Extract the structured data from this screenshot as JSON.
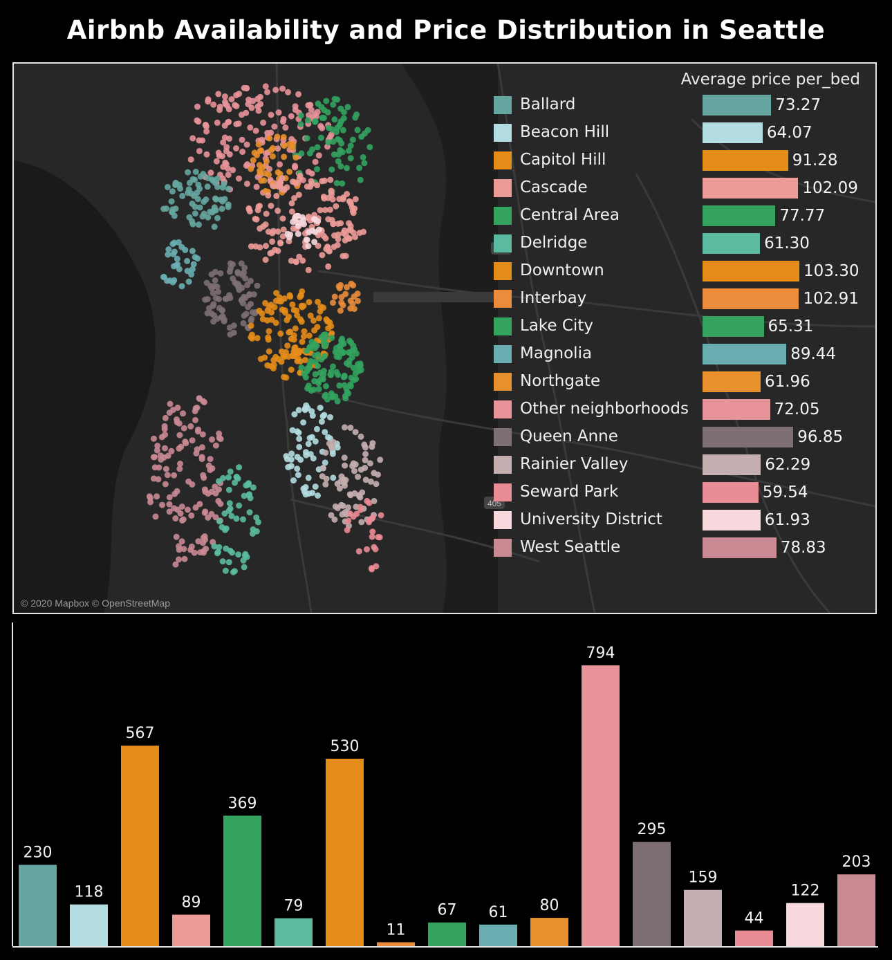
{
  "title": "Airbnb Availability and Price Distribution in Seattle",
  "map": {
    "attribution": "© 2020 Mapbox © OpenStreetMap",
    "road_labels": [
      "405",
      "405"
    ],
    "background_color": "#272727"
  },
  "legend_header": "Average price per_bed",
  "chart_data": [
    {
      "type": "bar",
      "orientation": "horizontal",
      "title": "Average price per_bed",
      "categories": [
        "Ballard",
        "Beacon Hill",
        "Capitol Hill",
        "Cascade",
        "Central Area",
        "Delridge",
        "Downtown",
        "Interbay",
        "Lake City",
        "Magnolia",
        "Northgate",
        "Other neighborhoods",
        "Queen Anne",
        "Rainier Valley",
        "Seward Park",
        "University District",
        "West Seattle"
      ],
      "values": [
        73.27,
        64.07,
        91.28,
        102.09,
        77.77,
        61.3,
        103.3,
        102.91,
        65.31,
        89.44,
        61.96,
        72.05,
        96.85,
        62.29,
        59.54,
        61.93,
        78.83
      ],
      "labels": [
        "73.27",
        "64.07",
        "91.28",
        "102.09",
        "77.77",
        "61.30",
        "103.30",
        "102.91",
        "65.31",
        "89.44",
        "61.96",
        "72.05",
        "96.85",
        "62.29",
        "59.54",
        "61.93",
        "78.83"
      ],
      "colors": [
        "#66a6a0",
        "#b3dde0",
        "#e38c1a",
        "#ec9b98",
        "#33a35f",
        "#5bbba0",
        "#e38c1a",
        "#ea8c3c",
        "#33a35f",
        "#6aaeb1",
        "#e8902c",
        "#e8939a",
        "#7d6f73",
        "#c5aeb0",
        "#ea8c95",
        "#f6d8dd",
        "#c98a93"
      ],
      "xlim": [
        0,
        103.3
      ]
    },
    {
      "type": "bar",
      "title": "",
      "categories": [
        "Ballard",
        "Beacon Hill",
        "Capitol Hill",
        "Cascade",
        "Central Area",
        "Delridge",
        "Downtown",
        "Interbay",
        "Lake City",
        "Magnolia",
        "Northgate",
        "Other neighborhoods",
        "Queen Anne",
        "Rainier Valley",
        "Seward Park",
        "University District",
        "West Seattle"
      ],
      "values": [
        230,
        118,
        567,
        89,
        369,
        79,
        530,
        11,
        67,
        61,
        80,
        794,
        295,
        159,
        44,
        122,
        203
      ],
      "labels": [
        "230",
        "118",
        "567",
        "89",
        "369",
        "79",
        "530",
        "11",
        "67",
        "61",
        "80",
        "794",
        "295",
        "159",
        "44",
        "122",
        "203"
      ],
      "colors": [
        "#66a6a0",
        "#b3dde0",
        "#e38c1a",
        "#ec9b98",
        "#33a35f",
        "#5bbba0",
        "#e38c1a",
        "#ea8c3c",
        "#33a35f",
        "#6aaeb1",
        "#e8902c",
        "#e8939a",
        "#7d6f73",
        "#c5aeb0",
        "#ea8c95",
        "#f6d8dd",
        "#c98a93"
      ],
      "ylim": [
        0,
        794
      ]
    }
  ]
}
